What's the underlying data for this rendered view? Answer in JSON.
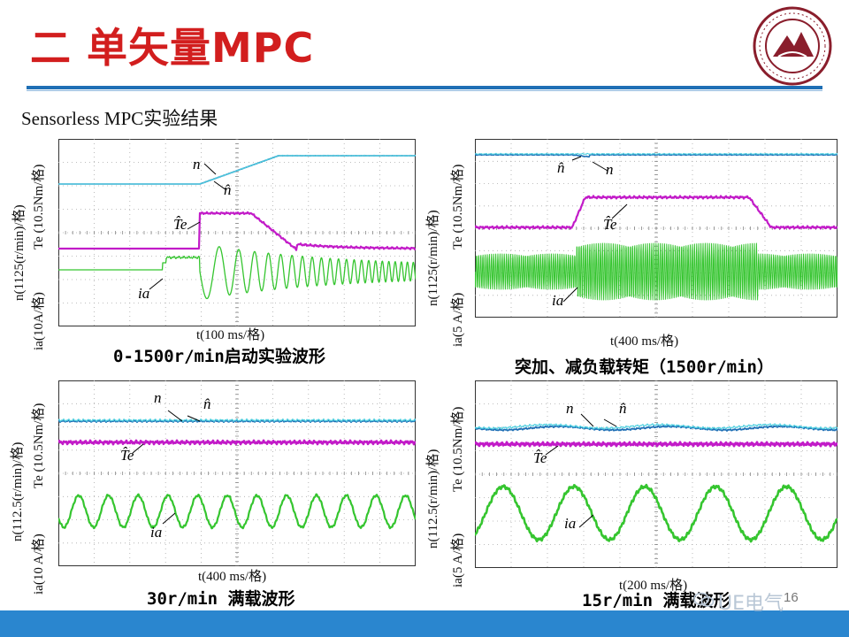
{
  "slide": {
    "title": "二  单矢量MPC",
    "subtitle": "Sensorless MPC实验结果",
    "page_number": "16",
    "watermark": "UE电气"
  },
  "panels": [
    {
      "y_labels": [
        "n(1125(r/min)/格)",
        "Te (10.5Nm/格)",
        "ia(10A/格)"
      ],
      "x_label": "t(100 ms/格)",
      "caption": "0-1500r/min启动实验波形",
      "trace_labels": [
        "n",
        "n̂",
        "T̂e",
        "ia"
      ]
    },
    {
      "y_labels": [
        "n(1125(r/min)/格)",
        "Te (10.5Nm/格)",
        "ia(5 A/格)"
      ],
      "x_label": "t(400 ms/格)",
      "caption": "突加、减负载转矩（1500r/min）",
      "trace_labels": [
        "n̂",
        "n",
        "T̂e",
        "ia"
      ]
    },
    {
      "y_labels": [
        "n(112.5(r/min)/格)",
        "Te (10.5Nm/格)",
        "ia(10 A/格)"
      ],
      "x_label": "t(400 ms/格)",
      "caption": "30r/min 满载波形",
      "trace_labels": [
        "n",
        "n̂",
        "T̂e",
        "ia"
      ]
    },
    {
      "y_labels": [
        "n(112.5(r/min)/格)",
        "Te (10.5Nm/格)",
        "ia(5 A/格)"
      ],
      "x_label": "t(200 ms/格)",
      "caption": "15r/min 满载波形",
      "trace_labels": [
        "n",
        "n̂",
        "T̂e",
        "ia"
      ]
    }
  ],
  "colors": {
    "title": "#d21e1e",
    "rule": "#1f6fb5",
    "speed": "#1f6fb5",
    "speed_est": "#4fd0e0",
    "torque": "#c21bc8",
    "current": "#35c52f",
    "footer": "#2a86cf"
  }
}
